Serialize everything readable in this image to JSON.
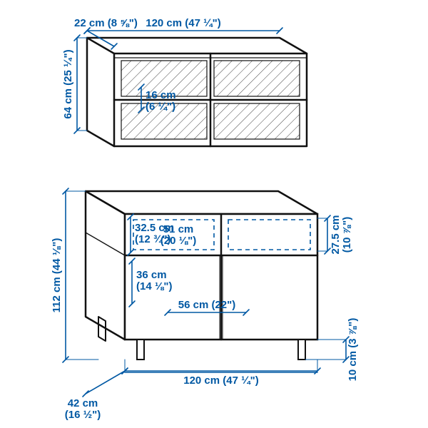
{
  "colors": {
    "outline": "#111111",
    "dim": "#0058a3",
    "text": "#0058a3",
    "bg": "#ffffff"
  },
  "stroke": {
    "outline_w": 2.5,
    "dim_w": 1.6,
    "dash_w": 1.6
  },
  "font": {
    "size": 15
  },
  "labels": {
    "depth_top": "22 cm (8 ⅝\")",
    "width_top": "120 cm (47 ¼\")",
    "shelf": "16 cm",
    "shelf2": "(6 ¼\")",
    "height_top": "64 cm (25 ¼\")",
    "drawer_h": "32.5 cm",
    "drawer_h2": "(12 ¾\")",
    "drawer_w": "51 cm",
    "drawer_w2": "(20 ⅛\")",
    "drawer_open_h": "27.5 cm",
    "drawer_open_h2": "(10 ⅞\")",
    "door_h": "36 cm",
    "door_h2": "(14 ⅛\")",
    "door_w": "56 cm (22\")",
    "height_bottom": "112 cm (44 ⅛\")",
    "leg_h": "10 cm (3 ⅞\")",
    "depth_bottom": "42 cm",
    "depth_bottom2": "(16 ½\")",
    "width_bottom": "120 cm (47 ¼\")"
  }
}
